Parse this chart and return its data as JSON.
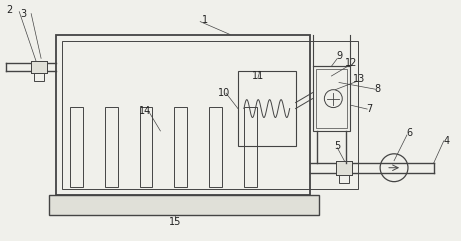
{
  "bg_color": "#f0f0eb",
  "line_color": "#444444",
  "label_color": "#222222",
  "fig_width": 4.61,
  "fig_height": 2.41,
  "dpi": 100
}
